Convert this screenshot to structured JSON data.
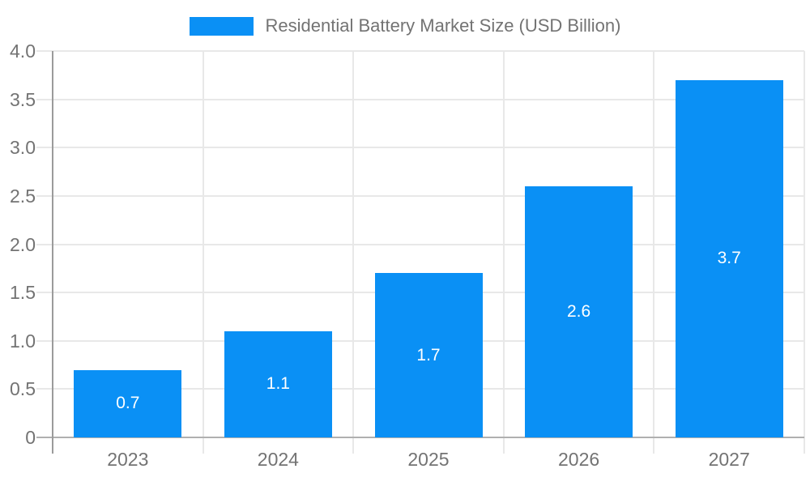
{
  "legend": {
    "label": "Residential Battery Market Size (USD Billion)",
    "swatch_color": "#0a90f5"
  },
  "chart_data": {
    "type": "bar",
    "title": "Residential Battery Market Size (USD Billion)",
    "series_name": "Residential Battery Market Size (USD Billion)",
    "categories": [
      "2023",
      "2024",
      "2025",
      "2026",
      "2027"
    ],
    "values": [
      0.7,
      1.1,
      1.7,
      2.6,
      3.7
    ],
    "value_labels": [
      "0.7",
      "1.1",
      "1.7",
      "2.6",
      "3.7"
    ],
    "xlabel": "",
    "ylabel": "",
    "ylim": [
      0,
      4.0
    ],
    "yticks": [
      {
        "v": 0,
        "label": "0"
      },
      {
        "v": 0.5,
        "label": "0.5"
      },
      {
        "v": 1.0,
        "label": "1.0"
      },
      {
        "v": 1.5,
        "label": "1.5"
      },
      {
        "v": 2.0,
        "label": "2.0"
      },
      {
        "v": 2.5,
        "label": "2.5"
      },
      {
        "v": 3.0,
        "label": "3.0"
      },
      {
        "v": 3.5,
        "label": "3.5"
      },
      {
        "v": 4.0,
        "label": "4.0"
      }
    ],
    "grid": true,
    "legend_position": "top-center",
    "bar_color": "#0a90f5",
    "bar_label_color": "#ffffff",
    "axis_text_color": "#737373",
    "grid_color": "#e8e8e8",
    "x_axis_line_color": "#b0b0b0",
    "y_axis_line_color": "#9b9b9b",
    "background_color": "#ffffff"
  }
}
